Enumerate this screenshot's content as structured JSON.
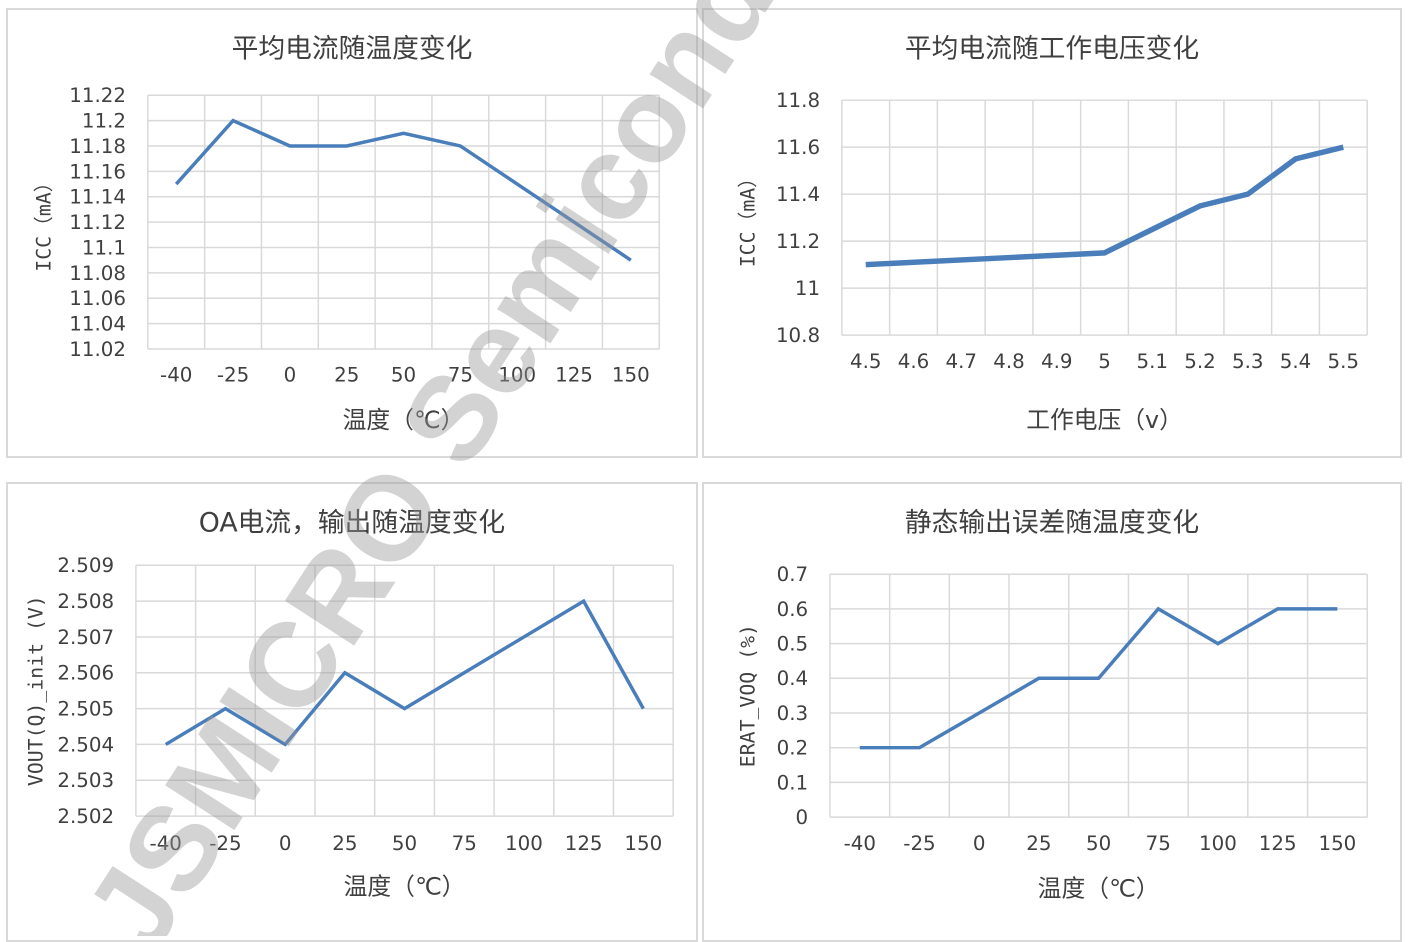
{
  "watermark": "JSMICRO Semiconduc",
  "colors": {
    "series": "#4a7ebb",
    "grid": "#d9d9d9",
    "text": "#404040",
    "border": "#d9d9d9"
  },
  "chart_data": [
    {
      "type": "line",
      "title": "平均电流随温度变化",
      "xlabel": "温度（℃）",
      "ylabel": "ICC（mA）",
      "categories": [
        "-40",
        "-25",
        "0",
        "25",
        "50",
        "75",
        "100",
        "125",
        "150"
      ],
      "series": [
        {
          "values": [
            11.15,
            11.2,
            11.18,
            11.18,
            11.19,
            11.18,
            11.15,
            11.12,
            11.09
          ]
        }
      ],
      "ylim": [
        11.02,
        11.22
      ],
      "yticks": [
        "11.22",
        "11.2",
        "11.18",
        "11.16",
        "11.14",
        "11.12",
        "11.1",
        "11.08",
        "11.06",
        "11.04",
        "11.02"
      ],
      "grid": true
    },
    {
      "type": "line",
      "title": "平均电流随工作电压变化",
      "xlabel": "工作电压（v）",
      "ylabel": "ICC（mA）",
      "categories": [
        "4.5",
        "4.6",
        "4.7",
        "4.8",
        "4.9",
        "5",
        "5.1",
        "5.2",
        "5.3",
        "5.4",
        "5.5"
      ],
      "series": [
        {
          "x": [
            4.5,
            5.0,
            5.1,
            5.2,
            5.3,
            5.4,
            5.5
          ],
          "values": [
            11.1,
            11.15,
            11.25,
            11.35,
            11.4,
            11.55,
            11.6
          ]
        }
      ],
      "ylim": [
        10.8,
        11.8
      ],
      "yticks": [
        "11.8",
        "11.6",
        "11.4",
        "11.2",
        "11",
        "10.8"
      ],
      "grid": true
    },
    {
      "type": "line",
      "title": "OA电流，输出随温度变化",
      "xlabel": "温度（℃）",
      "ylabel": "VOUT(Q)_init (V)",
      "categories": [
        "-40",
        "-25",
        "0",
        "25",
        "50",
        "75",
        "100",
        "125",
        "150"
      ],
      "series": [
        {
          "values": [
            2.504,
            2.505,
            2.504,
            2.506,
            2.505,
            2.506,
            2.507,
            2.508,
            2.505
          ]
        }
      ],
      "ylim": [
        2.502,
        2.509
      ],
      "yticks": [
        "2.509",
        "2.508",
        "2.507",
        "2.506",
        "2.505",
        "2.504",
        "2.503",
        "2.502"
      ],
      "grid": true
    },
    {
      "type": "line",
      "title": "静态输出误差随温度变化",
      "xlabel": "温度（℃）",
      "ylabel": "ERAT_VOQ (%)",
      "categories": [
        "-40",
        "-25",
        "0",
        "25",
        "50",
        "75",
        "100",
        "125",
        "150"
      ],
      "series": [
        {
          "values": [
            0.2,
            0.2,
            0.3,
            0.4,
            0.4,
            0.6,
            0.5,
            0.6,
            0.6
          ]
        }
      ],
      "ylim": [
        0,
        0.7
      ],
      "yticks": [
        "0.7",
        "0.6",
        "0.5",
        "0.4",
        "0.3",
        "0.2",
        "0.1",
        "0"
      ],
      "grid": true
    }
  ]
}
